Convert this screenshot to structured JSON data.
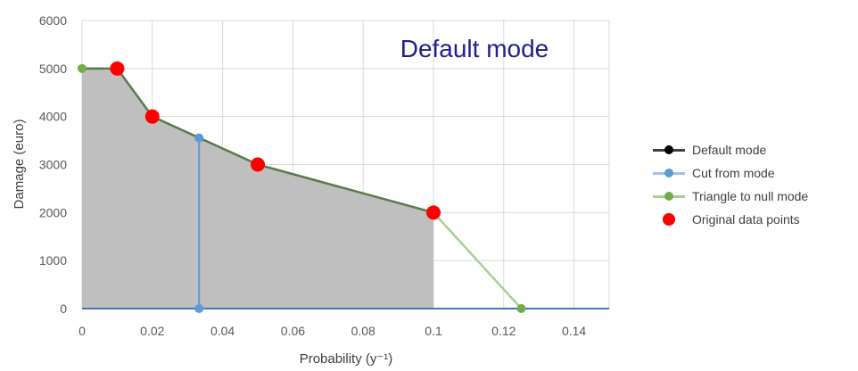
{
  "chart_data": {
    "type": "line",
    "title": "Default mode",
    "xlabel": "Probability (y⁻¹)",
    "ylabel": "Damage (euro)",
    "xlim": [
      0,
      0.15
    ],
    "ylim": [
      0,
      6000
    ],
    "x_ticks": [
      0,
      0.02,
      0.04,
      0.06,
      0.08,
      0.1,
      0.12,
      0.14
    ],
    "x_tick_labels": [
      "0",
      "0.02",
      "0.04",
      "0.06",
      "0.08",
      "0.1",
      "0.12",
      "0.14"
    ],
    "y_ticks": [
      0,
      1000,
      2000,
      3000,
      4000,
      5000,
      6000
    ],
    "y_tick_labels": [
      "0",
      "1000",
      "2000",
      "3000",
      "4000",
      "5000",
      "6000"
    ],
    "grid": true,
    "legend_position": "right",
    "shaded_area": {
      "x": [
        0,
        0.01,
        0.02,
        0.05,
        0.1
      ],
      "y": [
        5000,
        5000,
        4000,
        3000,
        2000
      ],
      "color": "#bfbfbf"
    },
    "series": [
      {
        "name": "Default mode",
        "color": "#000000",
        "line_color": "#404040",
        "x": [
          0,
          0.01,
          0.02,
          0.05,
          0.1
        ],
        "y": [
          5000,
          5000,
          4000,
          3000,
          2000
        ]
      },
      {
        "name": "Cut from mode",
        "color": "#5b9bd5",
        "x": [
          0.0333,
          0.0333
        ],
        "y": [
          0,
          3556
        ]
      },
      {
        "name": "Triangle to null mode",
        "color": "#70ad47",
        "line_color": "#a9d18e",
        "x": [
          0,
          0.01,
          0.02,
          0.05,
          0.1,
          0.125
        ],
        "y": [
          5000,
          5000,
          4000,
          3000,
          2000,
          0
        ]
      },
      {
        "name": "Original data points",
        "color": "#ff0000",
        "x": [
          0.01,
          0.02,
          0.05,
          0.1
        ],
        "y": [
          5000,
          4000,
          3000,
          2000
        ]
      }
    ],
    "baseline": {
      "x": [
        0,
        0.15
      ],
      "y": [
        0,
        0
      ],
      "color": "#4472c4"
    }
  }
}
